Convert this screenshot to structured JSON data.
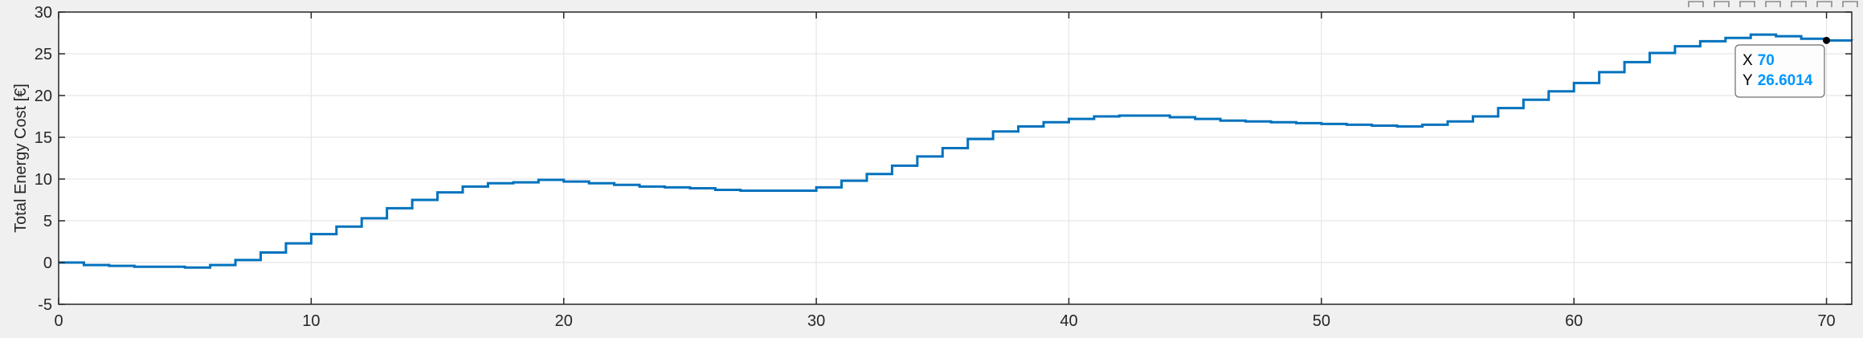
{
  "toolbar": {
    "icons": [
      "export-icon",
      "brush-icon",
      "datatip-icon",
      "pan-icon",
      "zoom-in-icon",
      "zoom-out-icon",
      "restore-view-icon"
    ]
  },
  "colors": {
    "line": "#0072BD",
    "grid": "#e6e6e6",
    "axes_bg": "#ffffff",
    "figure_bg": "#f0f0f0",
    "axis": "#262626",
    "datatip_value": "#0096ff"
  },
  "chart_data": {
    "type": "line",
    "step": true,
    "title": "",
    "xlabel": "",
    "ylabel": "Total Energy Cost [€]",
    "xlim": [
      0,
      71
    ],
    "ylim": [
      -5,
      30
    ],
    "xticks": [
      0,
      10,
      20,
      30,
      40,
      50,
      60,
      70
    ],
    "yticks": [
      -5,
      0,
      5,
      10,
      15,
      20,
      25,
      30
    ],
    "grid": true,
    "series": [
      {
        "x": [
          0,
          1,
          2,
          3,
          4,
          5,
          6,
          7,
          8,
          9,
          10,
          11,
          12,
          13,
          14,
          15,
          16,
          17,
          18,
          19,
          20,
          21,
          22,
          23,
          24,
          25,
          26,
          27,
          28,
          29,
          30,
          31,
          32,
          33,
          34,
          35,
          36,
          37,
          38,
          39,
          40,
          41,
          42,
          43,
          44,
          45,
          46,
          47,
          48,
          49,
          50,
          51,
          52,
          53,
          54,
          55,
          56,
          57,
          58,
          59,
          60,
          61,
          62,
          63,
          64,
          65,
          66,
          67,
          68,
          69,
          70,
          71
        ],
        "y": [
          0,
          -0.3,
          -0.4,
          -0.5,
          -0.5,
          -0.6,
          -0.3,
          0.3,
          1.2,
          2.3,
          3.4,
          4.3,
          5.3,
          6.5,
          7.5,
          8.4,
          9.1,
          9.5,
          9.6,
          9.9,
          9.7,
          9.5,
          9.3,
          9.1,
          9.0,
          8.9,
          8.7,
          8.6,
          8.6,
          8.6,
          9.0,
          9.8,
          10.6,
          11.6,
          12.7,
          13.7,
          14.8,
          15.7,
          16.3,
          16.8,
          17.2,
          17.5,
          17.6,
          17.6,
          17.4,
          17.2,
          17.0,
          16.9,
          16.8,
          16.7,
          16.6,
          16.5,
          16.4,
          16.3,
          16.5,
          16.9,
          17.5,
          18.5,
          19.5,
          20.5,
          21.5,
          22.8,
          24.0,
          25.1,
          25.9,
          26.5,
          26.9,
          27.3,
          27.1,
          26.8,
          26.6014,
          26.6
        ]
      }
    ],
    "datatip": {
      "x_label": "X",
      "x_value": "70",
      "y_label": "Y",
      "y_value": "26.6014",
      "at": [
        70,
        26.6014
      ]
    }
  }
}
